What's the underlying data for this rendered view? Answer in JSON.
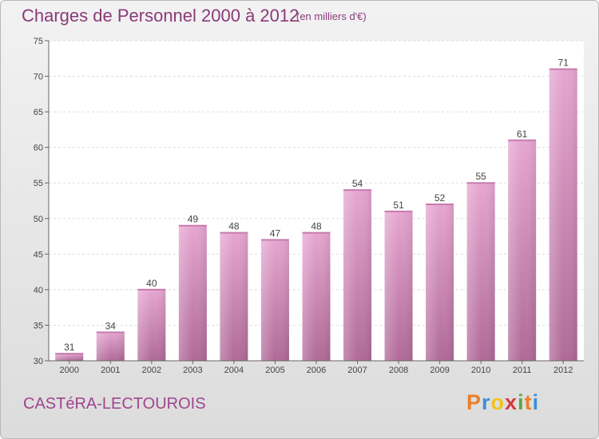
{
  "title": "Charges de Personnel 2000 à 2012",
  "subtitle": "(en milliers d'€)",
  "commune": "CASTéRA-LECTOUROIS",
  "logo": {
    "letters": [
      "P",
      "r",
      "o",
      "x",
      "i",
      "t",
      "i"
    ],
    "colors": [
      "#e8802c",
      "#3a8fd8",
      "#f2c21c",
      "#d43a3a",
      "#5aa83c",
      "#e8802c",
      "#3a8fd8"
    ]
  },
  "colors": {
    "bar": "#d98ebf",
    "accent": "#8a3a78"
  },
  "chart_data": {
    "type": "bar",
    "title": "Charges de Personnel 2000 à 2012",
    "subtitle": "(en milliers d'€)",
    "categories": [
      "2000",
      "2001",
      "2002",
      "2003",
      "2004",
      "2005",
      "2006",
      "2007",
      "2008",
      "2009",
      "2010",
      "2011",
      "2012"
    ],
    "values": [
      31,
      34,
      40,
      49,
      48,
      47,
      48,
      54,
      51,
      52,
      55,
      61,
      71
    ],
    "ylim": [
      30,
      75
    ],
    "yticks": [
      30,
      35,
      40,
      45,
      50,
      55,
      60,
      65,
      70,
      75
    ],
    "grid": true
  }
}
